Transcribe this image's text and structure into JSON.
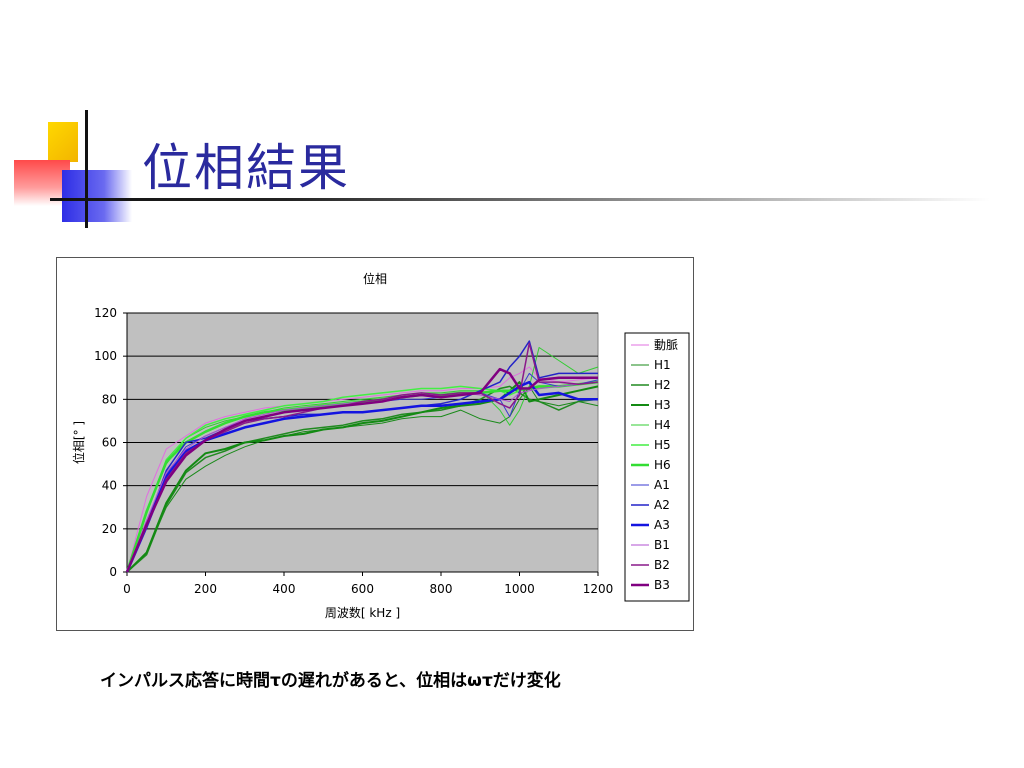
{
  "slide": {
    "title": "位相結果",
    "caption": "インパルス応答に時間τの遅れがあると、位相はωτだけ変化"
  },
  "chart_data": {
    "type": "line",
    "title": "位相",
    "xlabel": "周波数[ kHz ]",
    "ylabel": "位相[° ]",
    "xlim": [
      0,
      1200
    ],
    "ylim": [
      0,
      120
    ],
    "xticks": [
      0,
      200,
      400,
      600,
      800,
      1000,
      1200
    ],
    "yticks": [
      0,
      20,
      40,
      60,
      80,
      100,
      120
    ],
    "grid": true,
    "plot_background": "#c0c0c0",
    "legend_position": "right",
    "x": [
      0,
      50,
      100,
      150,
      200,
      250,
      300,
      350,
      400,
      450,
      500,
      550,
      600,
      650,
      700,
      750,
      800,
      850,
      900,
      950,
      975,
      1000,
      1025,
      1050,
      1100,
      1150,
      1200
    ],
    "series": [
      {
        "name": "動脈",
        "color": "#e070e0",
        "width": 1,
        "values": [
          0,
          35,
          57,
          63,
          69,
          72,
          74,
          76,
          77,
          78,
          79,
          80,
          81,
          82,
          83,
          84,
          84,
          85,
          85,
          86,
          90,
          92,
          95,
          90,
          88,
          89,
          90
        ]
      },
      {
        "name": "H1",
        "color": "#1a8a1a",
        "width": 1,
        "values": [
          0,
          9,
          30,
          43,
          49,
          54,
          58,
          61,
          63,
          65,
          66,
          67,
          68,
          69,
          71,
          72,
          72,
          75,
          71,
          69,
          72,
          80,
          86,
          79,
          77,
          79,
          77
        ]
      },
      {
        "name": "H2",
        "color": "#208a20",
        "width": 1.5,
        "values": [
          0,
          8,
          31,
          46,
          53,
          56,
          60,
          62,
          64,
          66,
          67,
          68,
          70,
          71,
          73,
          74,
          75,
          77,
          80,
          85,
          86,
          83,
          80,
          79,
          75,
          79,
          80
        ]
      },
      {
        "name": "H3",
        "color": "#138a13",
        "width": 2,
        "values": [
          0,
          9,
          32,
          47,
          55,
          57,
          60,
          61,
          63,
          64,
          66,
          67,
          69,
          70,
          72,
          74,
          76,
          77,
          78,
          80,
          84,
          88,
          79,
          80,
          82,
          84,
          86
        ]
      },
      {
        "name": "H4",
        "color": "#33cc33",
        "width": 1,
        "values": [
          0,
          28,
          50,
          62,
          67,
          70,
          72,
          74,
          76,
          77,
          78,
          79,
          80,
          81,
          82,
          83,
          83,
          84,
          84,
          75,
          68,
          75,
          86,
          104,
          98,
          92,
          95
        ]
      },
      {
        "name": "H5",
        "color": "#44ee44",
        "width": 1.5,
        "values": [
          0,
          27,
          52,
          62,
          68,
          71,
          73,
          75,
          77,
          78,
          79,
          81,
          82,
          83,
          84,
          85,
          85,
          86,
          85,
          84,
          82,
          84,
          85,
          85,
          86,
          87,
          88
        ]
      },
      {
        "name": "H6",
        "color": "#33dd33",
        "width": 2.5,
        "values": [
          0,
          28,
          51,
          60,
          65,
          69,
          72,
          74,
          75,
          76,
          77,
          78,
          79,
          80,
          81,
          82,
          82,
          83,
          83,
          84,
          84,
          85,
          85,
          86,
          86,
          87,
          88
        ]
      },
      {
        "name": "A1",
        "color": "#3a3ad0",
        "width": 1,
        "values": [
          0,
          22,
          45,
          58,
          63,
          67,
          70,
          72,
          74,
          75,
          76,
          77,
          78,
          79,
          80,
          80,
          81,
          82,
          83,
          80,
          72,
          84,
          92,
          88,
          86,
          87,
          89
        ]
      },
      {
        "name": "A2",
        "color": "#2424c8",
        "width": 1.5,
        "values": [
          0,
          22,
          47,
          60,
          62,
          66,
          70,
          71,
          72,
          73,
          73,
          74,
          74,
          75,
          76,
          77,
          78,
          80,
          84,
          88,
          95,
          100,
          107,
          90,
          92,
          92,
          92
        ]
      },
      {
        "name": "A3",
        "color": "#1414e0",
        "width": 2.5,
        "values": [
          0,
          21,
          44,
          56,
          61,
          64,
          67,
          69,
          71,
          72,
          73,
          74,
          74,
          75,
          76,
          77,
          77,
          78,
          79,
          80,
          83,
          86,
          88,
          82,
          83,
          80,
          80
        ]
      },
      {
        "name": "B1",
        "color": "#b050d0",
        "width": 1,
        "values": [
          0,
          24,
          46,
          57,
          63,
          67,
          71,
          73,
          75,
          76,
          77,
          78,
          79,
          80,
          81,
          82,
          82,
          83,
          82,
          80,
          79,
          83,
          84,
          85,
          86,
          87,
          88
        ]
      },
      {
        "name": "B2",
        "color": "#8a1a8a",
        "width": 1.5,
        "values": [
          0,
          21,
          43,
          55,
          61,
          65,
          69,
          71,
          72,
          74,
          76,
          77,
          79,
          80,
          82,
          83,
          82,
          83,
          83,
          78,
          76,
          82,
          106,
          88,
          88,
          87,
          88
        ]
      },
      {
        "name": "B3",
        "color": "#800080",
        "width": 2.5,
        "values": [
          0,
          22,
          42,
          54,
          61,
          66,
          70,
          72,
          74,
          75,
          76,
          77,
          78,
          79,
          81,
          82,
          81,
          82,
          83,
          94,
          92,
          85,
          85,
          89,
          90,
          90,
          90
        ]
      }
    ]
  }
}
